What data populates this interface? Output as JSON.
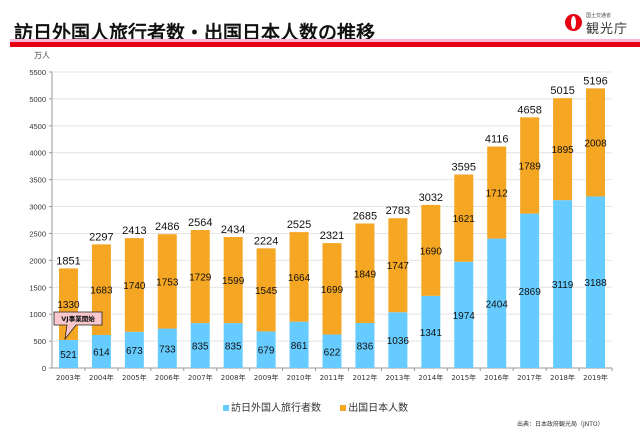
{
  "header": {
    "title": "訪日外国人旅行者数・出国日本人数の推移",
    "logo_small": "国土交通省",
    "logo_main": "観光庁",
    "brand_color": "#e60012"
  },
  "chart_data": {
    "type": "bar",
    "stacked": true,
    "title": "訪日外国人旅行者数・出国日本人数の推移",
    "ylabel": "万人",
    "xlabel": "",
    "ylim": [
      0,
      5500
    ],
    "yticks": [
      0,
      500,
      1000,
      1500,
      2000,
      2500,
      3000,
      3500,
      4000,
      4500,
      5000,
      5500
    ],
    "grid": true,
    "categories": [
      "2003年",
      "2004年",
      "2005年",
      "2006年",
      "2007年",
      "2008年",
      "2009年",
      "2010年",
      "2011年",
      "2012年",
      "2013年",
      "2014年",
      "2015年",
      "2016年",
      "2017年",
      "2018年",
      "2019年"
    ],
    "series": [
      {
        "name": "訪日外国人旅行者数",
        "color": "#66ccff",
        "values": [
          521,
          614,
          673,
          733,
          835,
          835,
          679,
          861,
          622,
          836,
          1036,
          1341,
          1974,
          2404,
          2869,
          3119,
          3188
        ]
      },
      {
        "name": "出国日本人数",
        "color": "#f5a623",
        "values": [
          1330,
          1683,
          1740,
          1753,
          1729,
          1599,
          1545,
          1664,
          1699,
          1849,
          1747,
          1690,
          1621,
          1712,
          1789,
          1895,
          2008
        ]
      }
    ],
    "totals": [
      1851,
      2297,
      2413,
      2486,
      2564,
      2434,
      2224,
      2525,
      2321,
      2685,
      2783,
      3032,
      3595,
      4116,
      4658,
      5015,
      5196
    ],
    "annotation": {
      "text": "VJ事業開始",
      "category": "2003年"
    },
    "legend_position": "bottom",
    "source": "出典：日本政府観光局（JNTO）"
  }
}
